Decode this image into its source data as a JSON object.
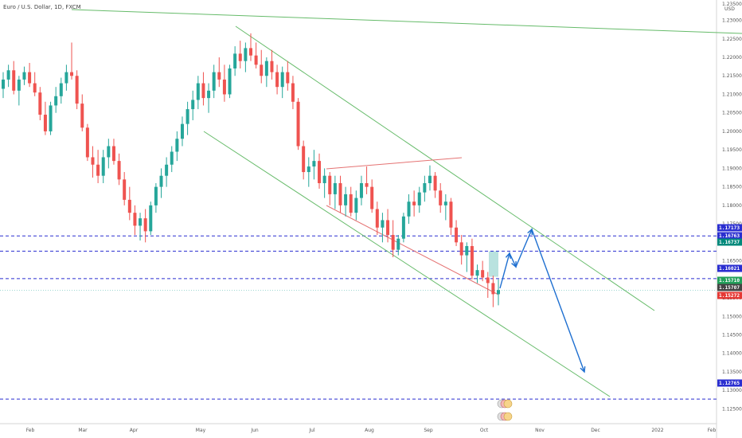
{
  "chart_data": {
    "type": "candlestick",
    "title": "Euro / U.S. Dollar, 1D, FXCM",
    "currency": "USD",
    "x_ticks": [
      "Feb",
      "Mar",
      "Apr",
      "May",
      "Jun",
      "Jul",
      "Aug",
      "Sep",
      "Oct",
      "Nov",
      "Dec",
      "2022",
      "Feb"
    ],
    "y_ticks": [
      "1.12500",
      "1.13000",
      "1.13500",
      "1.14000",
      "1.14500",
      "1.15000",
      "1.15500",
      "1.16000",
      "1.16500",
      "1.17000",
      "1.17500",
      "1.18000",
      "1.18500",
      "1.19000",
      "1.19500",
      "1.20000",
      "1.20500",
      "1.21000",
      "1.21500",
      "1.22000",
      "1.22500",
      "1.23000",
      "1.23500"
    ],
    "y_top_tick": "1.23500",
    "ylim": [
      1.121,
      1.2355
    ],
    "price_tags": [
      {
        "label": "1.17173",
        "price": 1.17173,
        "color": "#2a2ed0"
      },
      {
        "label": "1.16763",
        "price": 1.16763,
        "color": "#2a2ed0"
      },
      {
        "label": "1.16737",
        "price": 1.16737,
        "color": "#00897b"
      },
      {
        "label": "1.16021",
        "price": 1.16021,
        "color": "#2a2ed0"
      },
      {
        "label": "1.15710",
        "price": 1.1571,
        "color": "#22a05a"
      },
      {
        "label": "1.15707",
        "price": 1.15707,
        "color": "#444444"
      },
      {
        "label": "1.15272",
        "price": 1.15272,
        "color": "#e53935"
      },
      {
        "label": "1.12765",
        "price": 1.12765,
        "color": "#2a2ed0"
      }
    ],
    "horizontal_levels": [
      1.17173,
      1.16763,
      1.16021,
      1.12765
    ],
    "candles": [
      [
        1.2115,
        1.216,
        1.209,
        1.214
      ],
      [
        1.214,
        1.218,
        1.212,
        1.2165
      ],
      [
        1.2165,
        1.219,
        1.21,
        1.211
      ],
      [
        1.211,
        1.215,
        1.207,
        1.214
      ],
      [
        1.214,
        1.2175,
        1.2125,
        1.216
      ],
      [
        1.216,
        1.2185,
        1.212,
        1.213
      ],
      [
        1.213,
        1.216,
        1.2095,
        1.2105
      ],
      [
        1.2105,
        1.212,
        1.203,
        1.2045
      ],
      [
        1.2045,
        1.208,
        1.199,
        1.2
      ],
      [
        1.2,
        1.208,
        1.199,
        1.207
      ],
      [
        1.207,
        1.212,
        1.205,
        1.2095
      ],
      [
        1.2095,
        1.2145,
        1.2075,
        1.213
      ],
      [
        1.213,
        1.218,
        1.211,
        1.216
      ],
      [
        1.216,
        1.224,
        1.214,
        1.215
      ],
      [
        1.215,
        1.2165,
        1.206,
        1.2075
      ],
      [
        1.2075,
        1.21,
        1.2,
        1.201
      ],
      [
        1.201,
        1.202,
        1.192,
        1.193
      ],
      [
        1.193,
        1.196,
        1.1875,
        1.191
      ],
      [
        1.191,
        1.195,
        1.186,
        1.188
      ],
      [
        1.188,
        1.195,
        1.186,
        1.193
      ],
      [
        1.193,
        1.198,
        1.19,
        1.196
      ],
      [
        1.196,
        1.198,
        1.191,
        1.192
      ],
      [
        1.192,
        1.194,
        1.1855,
        1.187
      ],
      [
        1.187,
        1.189,
        1.18,
        1.1815
      ],
      [
        1.1815,
        1.185,
        1.176,
        1.178
      ],
      [
        1.178,
        1.18,
        1.172,
        1.1745
      ],
      [
        1.1745,
        1.178,
        1.1705,
        1.1765
      ],
      [
        1.1765,
        1.179,
        1.17,
        1.173
      ],
      [
        1.173,
        1.181,
        1.172,
        1.18
      ],
      [
        1.18,
        1.186,
        1.178,
        1.185
      ],
      [
        1.185,
        1.19,
        1.182,
        1.188
      ],
      [
        1.188,
        1.193,
        1.185,
        1.191
      ],
      [
        1.191,
        1.196,
        1.189,
        1.1945
      ],
      [
        1.1945,
        1.2,
        1.192,
        1.198
      ],
      [
        1.198,
        1.204,
        1.196,
        1.202
      ],
      [
        1.202,
        1.208,
        1.199,
        1.206
      ],
      [
        1.206,
        1.211,
        1.203,
        1.2085
      ],
      [
        1.2085,
        1.215,
        1.206,
        1.213
      ],
      [
        1.213,
        1.216,
        1.207,
        1.209
      ],
      [
        1.209,
        1.213,
        1.205,
        1.211
      ],
      [
        1.211,
        1.218,
        1.209,
        1.216
      ],
      [
        1.216,
        1.22,
        1.212,
        1.214
      ],
      [
        1.214,
        1.218,
        1.208,
        1.21
      ],
      [
        1.21,
        1.218,
        1.209,
        1.217
      ],
      [
        1.217,
        1.223,
        1.215,
        1.221
      ],
      [
        1.221,
        1.2245,
        1.217,
        1.219
      ],
      [
        1.219,
        1.224,
        1.216,
        1.2225
      ],
      [
        1.2225,
        1.2265,
        1.219,
        1.2205
      ],
      [
        1.2205,
        1.224,
        1.217,
        1.218
      ],
      [
        1.218,
        1.222,
        1.213,
        1.215
      ],
      [
        1.215,
        1.22,
        1.212,
        1.219
      ],
      [
        1.219,
        1.222,
        1.214,
        1.216
      ],
      [
        1.216,
        1.218,
        1.21,
        1.212
      ],
      [
        1.212,
        1.2175,
        1.209,
        1.216
      ],
      [
        1.216,
        1.219,
        1.211,
        1.213
      ],
      [
        1.213,
        1.215,
        1.206,
        1.208
      ],
      [
        1.208,
        1.209,
        1.195,
        1.196
      ],
      [
        1.196,
        1.1975,
        1.187,
        1.189
      ],
      [
        1.189,
        1.193,
        1.185,
        1.1905
      ],
      [
        1.1905,
        1.195,
        1.187,
        1.192
      ],
      [
        1.192,
        1.194,
        1.1845,
        1.186
      ],
      [
        1.186,
        1.19,
        1.182,
        1.188
      ],
      [
        1.188,
        1.189,
        1.18,
        1.183
      ],
      [
        1.183,
        1.188,
        1.179,
        1.186
      ],
      [
        1.186,
        1.188,
        1.178,
        1.18
      ],
      [
        1.18,
        1.185,
        1.177,
        1.183
      ],
      [
        1.183,
        1.185,
        1.177,
        1.178
      ],
      [
        1.178,
        1.184,
        1.176,
        1.182
      ],
      [
        1.182,
        1.188,
        1.18,
        1.186
      ],
      [
        1.186,
        1.1905,
        1.183,
        1.185
      ],
      [
        1.185,
        1.187,
        1.178,
        1.179
      ],
      [
        1.179,
        1.181,
        1.172,
        1.174
      ],
      [
        1.174,
        1.178,
        1.17,
        1.176
      ],
      [
        1.176,
        1.179,
        1.17,
        1.172
      ],
      [
        1.172,
        1.176,
        1.166,
        1.168
      ],
      [
        1.168,
        1.172,
        1.1665,
        1.171
      ],
      [
        1.171,
        1.178,
        1.17,
        1.177
      ],
      [
        1.177,
        1.183,
        1.175,
        1.181
      ],
      [
        1.181,
        1.184,
        1.177,
        1.18
      ],
      [
        1.18,
        1.185,
        1.178,
        1.1835
      ],
      [
        1.1835,
        1.188,
        1.181,
        1.186
      ],
      [
        1.186,
        1.1908,
        1.184,
        1.188
      ],
      [
        1.188,
        1.189,
        1.182,
        1.184
      ],
      [
        1.184,
        1.186,
        1.178,
        1.18
      ],
      [
        1.18,
        1.183,
        1.176,
        1.181
      ],
      [
        1.181,
        1.182,
        1.172,
        1.174
      ],
      [
        1.174,
        1.176,
        1.169,
        1.17
      ],
      [
        1.17,
        1.172,
        1.164,
        1.1665
      ],
      [
        1.1665,
        1.17,
        1.162,
        1.169
      ],
      [
        1.169,
        1.171,
        1.16,
        1.161
      ],
      [
        1.161,
        1.164,
        1.159,
        1.1625
      ],
      [
        1.1625,
        1.165,
        1.1595,
        1.1605
      ],
      [
        1.1605,
        1.162,
        1.155,
        1.159
      ],
      [
        1.159,
        1.161,
        1.1525,
        1.156
      ],
      [
        1.156,
        1.16,
        1.153,
        1.1571
      ]
    ],
    "channel_lines": [
      {
        "name": "long-term-trend",
        "color": "#66bb6a",
        "points": [
          [
            90,
            12
          ],
          [
            932,
            42
          ]
        ]
      },
      {
        "name": "channel-upper",
        "color": "#66bb6a",
        "points": [
          [
            296,
            33
          ],
          [
            822,
            390
          ]
        ]
      },
      {
        "name": "channel-lower",
        "color": "#66bb6a",
        "points": [
          [
            256,
            165
          ],
          [
            766,
            498
          ]
        ]
      },
      {
        "name": "wedge-upper",
        "color": "#e57373",
        "points": [
          [
            410,
            212
          ],
          [
            580,
            198
          ]
        ]
      },
      {
        "name": "wedge-lower",
        "color": "#e57373",
        "points": [
          [
            410,
            258
          ],
          [
            626,
            370
          ]
        ]
      }
    ],
    "projection_path": {
      "color": "#1e6fd0",
      "points": [
        [
          628,
          362
        ],
        [
          640,
          318
        ],
        [
          648,
          335
        ],
        [
          668,
          288
        ],
        [
          734,
          467
        ]
      ]
    },
    "target_zone": {
      "top": 1.1676,
      "bottom": 1.1607,
      "color": "#80cbc4"
    }
  }
}
